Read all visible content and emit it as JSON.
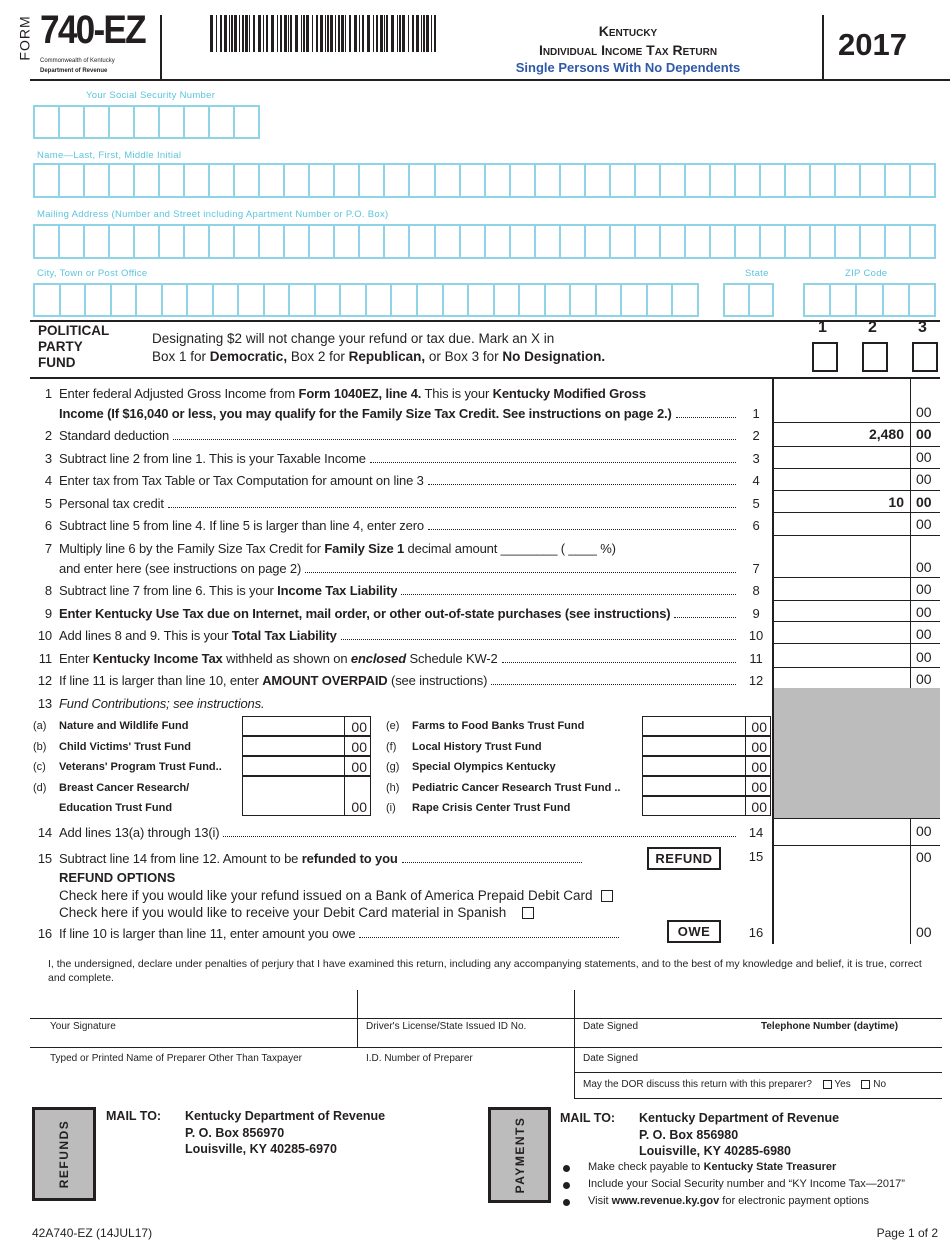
{
  "header": {
    "form_label": "FORM",
    "form_number": "740-EZ",
    "agency_line1": "Commonwealth of Kentucky",
    "agency_line2": "Department of Revenue",
    "title_state": "Kentucky",
    "title_main": "Individual Income Tax Return",
    "subtitle": "Single Persons With No Dependents",
    "year": "2017"
  },
  "identity": {
    "ssn_label": "Your Social Security Number",
    "name_label": "Name—Last, First, Middle Initial",
    "address_label": "Mailing Address (Number and Street including Apartment Number or P.O. Box)",
    "city_label": "City, Town or Post Office",
    "state_label": "State",
    "zip_label": "ZIP Code"
  },
  "party": {
    "heading": [
      "POLITICAL",
      "PARTY",
      "FUND"
    ],
    "text1": "Designating $2 will not change your refund or tax due. Mark an X in",
    "text2": [
      {
        "t": "Box 1 for "
      },
      {
        "t": "Democratic,",
        "b": true
      },
      {
        "t": " Box 2 for "
      },
      {
        "t": "Republican,",
        "b": true
      },
      {
        "t": " or Box 3 for "
      },
      {
        "t": "No Designation.",
        "b": true
      }
    ],
    "box_labels": [
      "1",
      "2",
      "3"
    ]
  },
  "lines": [
    {
      "num": "1",
      "rows": [
        {
          "segs": [
            {
              "t": "Enter federal Adjusted Gross Income from "
            },
            {
              "t": "Form 1040EZ, line 4.",
              "b": true
            },
            {
              "t": " This is your "
            },
            {
              "t": "Kentucky Modified Gross",
              "b": true
            }
          ]
        },
        {
          "segs": [
            {
              "t": "Income (If $16,040 or less, you may qualify for the Family Size Tax Credit. See instructions on page 2.)",
              "b": true
            }
          ],
          "ref": "1"
        }
      ],
      "value": "",
      "cents": "00"
    },
    {
      "num": "2",
      "rows": [
        {
          "segs": [
            {
              "t": "Standard deduction"
            }
          ],
          "ref": "2"
        }
      ],
      "value": "2,480",
      "cents": "00",
      "bold": true
    },
    {
      "num": "3",
      "rows": [
        {
          "segs": [
            {
              "t": "Subtract line 2 from line 1. This is your Taxable Income"
            }
          ],
          "ref": "3"
        }
      ],
      "value": "",
      "cents": "00"
    },
    {
      "num": "4",
      "rows": [
        {
          "segs": [
            {
              "t": "Enter tax from Tax Table or Tax Computation for amount on line 3"
            }
          ],
          "ref": "4"
        }
      ],
      "value": "",
      "cents": "00"
    },
    {
      "num": "5",
      "rows": [
        {
          "segs": [
            {
              "t": "Personal tax credit"
            }
          ],
          "ref": "5"
        }
      ],
      "value": "10",
      "cents": "00",
      "bold": true
    },
    {
      "num": "6",
      "rows": [
        {
          "segs": [
            {
              "t": "Subtract line 5 from line 4. If line 5 is larger than line 4, enter zero"
            }
          ],
          "ref": "6"
        }
      ],
      "value": "",
      "cents": "00"
    },
    {
      "num": "7",
      "rows": [
        {
          "segs": [
            {
              "t": "Multiply line 6 by the Family Size Tax Credit for "
            },
            {
              "t": "Family Size 1",
              "b": true
            },
            {
              "t": " decimal amount ________ ( ____ %)"
            }
          ]
        },
        {
          "segs": [
            {
              "t": "and enter here (see instructions on page 2)"
            }
          ],
          "ref": "7"
        }
      ],
      "value": "",
      "cents": "00"
    },
    {
      "num": "8",
      "rows": [
        {
          "segs": [
            {
              "t": "Subtract line 7 from line 6. This is your "
            },
            {
              "t": "Income Tax Liability",
              "b": true
            }
          ],
          "ref": "8"
        }
      ],
      "value": "",
      "cents": "00"
    },
    {
      "num": "9",
      "rows": [
        {
          "segs": [
            {
              "t": "Enter Kentucky Use Tax due on Internet, mail order, or other out-of-state purchases (see instructions)",
              "b": true
            }
          ],
          "ref": "9"
        }
      ],
      "value": "",
      "cents": "00"
    },
    {
      "num": "10",
      "rows": [
        {
          "segs": [
            {
              "t": "Add lines 8 and 9. This is your "
            },
            {
              "t": "Total Tax Liability",
              "b": true
            }
          ],
          "ref": "10"
        }
      ],
      "value": "",
      "cents": "00"
    },
    {
      "num": "11",
      "rows": [
        {
          "segs": [
            {
              "t": "Enter "
            },
            {
              "t": "Kentucky Income Tax",
              "b": true
            },
            {
              "t": " withheld as shown on "
            },
            {
              "t": "enclosed",
              "b": true,
              "i": true
            },
            {
              "t": " Schedule KW-2"
            }
          ],
          "ref": "11"
        }
      ],
      "value": "",
      "cents": "00"
    },
    {
      "num": "12",
      "rows": [
        {
          "segs": [
            {
              "t": "If line 11 is larger than line 10, enter "
            },
            {
              "t": "AMOUNT OVERPAID",
              "b": true
            },
            {
              "t": " (see instructions)"
            }
          ],
          "ref": "12"
        }
      ],
      "value": "",
      "cents": "00"
    },
    {
      "num": "13",
      "rows": [
        {
          "segs": [
            {
              "t": "Fund Contributions; see instructions.",
              "i": true
            }
          ]
        }
      ]
    }
  ],
  "funds": {
    "left": [
      {
        "letter": "(a)",
        "name": "Nature and Wildlife Fund",
        "cents": "00"
      },
      {
        "letter": "(b)",
        "name": "Child Victims' Trust Fund",
        "cents": "00"
      },
      {
        "letter": "(c)",
        "name": "Veterans' Program Trust Fund..",
        "cents": "00"
      },
      {
        "letter": "(d)",
        "name": "Breast Cancer Research/",
        "name2": "Education Trust Fund",
        "cents": "00"
      }
    ],
    "right": [
      {
        "letter": "(e)",
        "name": "Farms to Food Banks Trust Fund",
        "cents": "00"
      },
      {
        "letter": "(f)",
        "name": "Local History Trust Fund",
        "cents": "00"
      },
      {
        "letter": "(g)",
        "name": "Special Olympics Kentucky",
        "cents": "00"
      },
      {
        "letter": "(h)",
        "name": "Pediatric Cancer Research Trust Fund ..",
        "cents": "00"
      },
      {
        "letter": "(i)",
        "name": "Rape Crisis Center Trust Fund",
        "cents": "00"
      }
    ]
  },
  "lower_lines": {
    "l14": {
      "num": "14",
      "segs": [
        {
          "t": "Add lines 13(a) through 13(i)"
        }
      ],
      "ref": "14",
      "cents": "00"
    },
    "l15": {
      "num": "15",
      "segs": [
        {
          "t": "Subtract line 14 from line 12. Amount to be "
        },
        {
          "t": "refunded to you",
          "b": true
        }
      ],
      "ref": "15",
      "cents": "00",
      "tag": "REFUND"
    },
    "refund_options_heading": "REFUND OPTIONS",
    "refund_option1": "Check here if you would like your refund issued on a Bank of America Prepaid Debit Card",
    "refund_option2": "Check here if you would like to receive your Debit Card material in Spanish",
    "l16": {
      "num": "16",
      "segs": [
        {
          "t": "If line 10 is larger than line 11, enter amount you owe"
        }
      ],
      "ref": "16",
      "cents": "00",
      "tag": "OWE"
    }
  },
  "signature": {
    "declaration": "I, the undersigned, declare under penalties of perjury that I have examined this return, including any accompanying statements, and to the best of my knowledge and belief, it is true, correct and complete.",
    "your_signature": "Your Signature",
    "drivers_license": "Driver's License/State Issued ID No.",
    "date_signed": "Date Signed",
    "telephone": "Telephone Number (daytime)",
    "preparer_name": "Typed or Printed Name of Preparer Other Than Taxpayer",
    "preparer_id": "I.D. Number of Preparer",
    "preparer_date": "Date Signed",
    "dor_question": "May the DOR discuss this return with this preparer?",
    "yes": "Yes",
    "no": "No"
  },
  "mail": {
    "refunds": {
      "tab": "REFUNDS",
      "mail_to": "MAIL TO:",
      "lines": [
        "Kentucky Department of Revenue",
        "P. O. Box 856970",
        "Louisville, KY 40285-6970"
      ]
    },
    "payments": {
      "tab": "PAYMENTS",
      "mail_to": "MAIL TO:",
      "lines": [
        "Kentucky Department of Revenue",
        "P. O. Box 856980",
        "Louisville, KY 40285-6980"
      ],
      "bullets": [
        [
          {
            "t": "Make check payable to "
          },
          {
            "t": "Kentucky State Treasurer",
            "b": true
          }
        ],
        [
          {
            "t": "Include your Social Security number and “KY Income Tax—2017”"
          }
        ],
        [
          {
            "t": "Visit "
          },
          {
            "t": "www.revenue.ky.gov",
            "b": true
          },
          {
            "t": " for electronic payment options"
          }
        ]
      ]
    }
  },
  "footer": {
    "form_id": "42A740-EZ (14JUL17)",
    "page": "Page 1 of 2"
  },
  "colors": {
    "field_boxes": "#8fd3e6",
    "field_labels": "#5bc5dc",
    "subtitle": "#2e5aa8",
    "shaded": "#bcbcbc"
  }
}
